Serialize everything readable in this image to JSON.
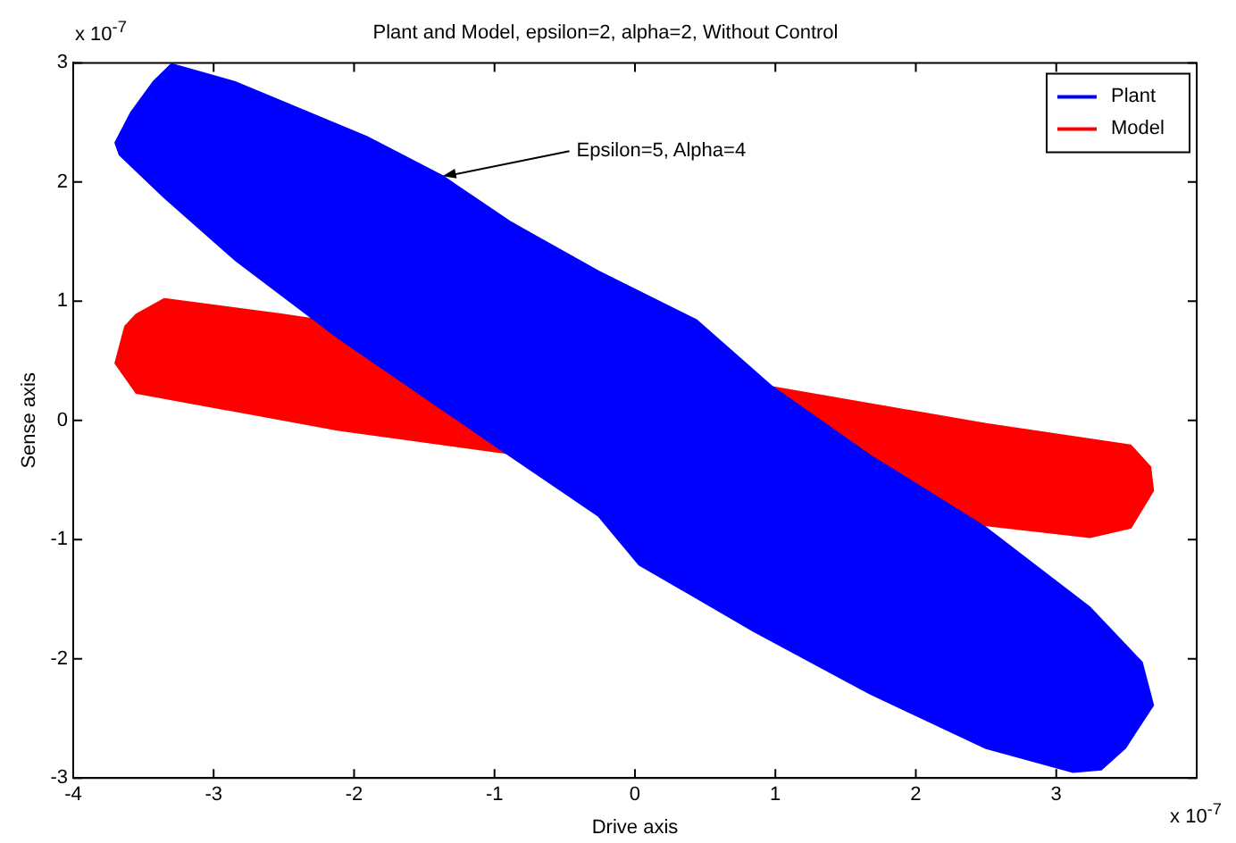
{
  "chart_data": {
    "type": "area",
    "title": "Plant and Model, epsilon=2, alpha=2, Without Control",
    "xlabel": "Drive axis",
    "ylabel": "Sense axis",
    "xlim": [
      -4,
      4
    ],
    "xticks": [
      -4,
      -3,
      -2,
      -1,
      0,
      1,
      2,
      3
    ],
    "ylim": [
      -3,
      3
    ],
    "yticks": [
      -3,
      -2,
      -1,
      0,
      1,
      2,
      3
    ],
    "grid": false,
    "legend": "top right",
    "marker": "none",
    "line_style": "solid",
    "annotations": [
      {
        "text": "Epsilon=5, Alpha=4",
        "x": -1.37,
        "y": 2.05
      },
      "x 10$^{-7}$",
      "x 10$^{-7}$"
    ],
    "series": [
      {
        "name": "Plant",
        "color": "#0000ff",
        "x": [
          -3.3,
          -2.85,
          -1.91,
          -1.37,
          -0.88,
          -0.26,
          0.44,
          0.98,
          1.67,
          2.5,
          3.24,
          3.61,
          3.69,
          3.49,
          3.32,
          3.12,
          2.5,
          1.67,
          0.85,
          0.03,
          -0.26,
          -0.96,
          -2.11,
          -2.85,
          -3.35,
          -3.67,
          -3.7,
          -3.59,
          -3.43,
          -3.3
        ],
        "values": [
          2.99,
          2.84,
          2.38,
          2.05,
          1.66,
          1.25,
          0.84,
          0.28,
          -0.29,
          -0.9,
          -1.57,
          -2.03,
          -2.39,
          -2.75,
          -2.93,
          -2.95,
          -2.75,
          -2.29,
          -1.77,
          -1.21,
          -0.8,
          -0.24,
          0.69,
          1.35,
          1.87,
          2.23,
          2.33,
          2.58,
          2.84,
          2.99
        ]
      },
      {
        "name": "Model",
        "color": "#ff0000",
        "x": [
          -3.35,
          -2.52,
          0.98,
          2.5,
          3.53,
          3.67,
          3.69,
          3.53,
          3.24,
          2.5,
          2.29,
          -1.0,
          -2.11,
          -3.55,
          -3.7,
          -3.63,
          -3.55,
          -3.35
        ],
        "values": [
          1.02,
          0.89,
          0.28,
          -0.03,
          -0.21,
          -0.39,
          -0.59,
          -0.9,
          -0.98,
          -0.88,
          -0.75,
          -0.26,
          -0.08,
          0.23,
          0.48,
          0.79,
          0.89,
          1.02
        ]
      }
    ]
  }
}
